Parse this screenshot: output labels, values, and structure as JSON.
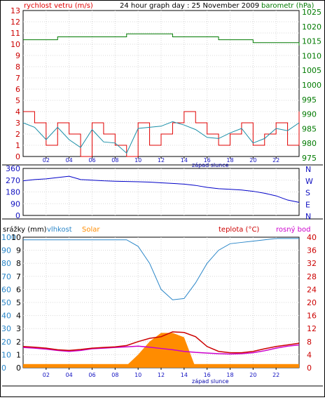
{
  "header": {
    "title": "24 hour graph day : 25 November 2009",
    "left_label": "rychlost vetru (m/s)",
    "right_label": "barometr (hPa)"
  },
  "lower": {
    "label_precip": "srážky (mm)",
    "label_humidity": "vlhkost",
    "label_solar": "Solar",
    "label_temp": "teplota (°C)",
    "label_dew": "rosný bod"
  },
  "footer_label": "západ slunce",
  "colors": {
    "wind": "#e00000",
    "gust": "#1a8fa8",
    "pressure": "#007a00",
    "direction": "#0000c8",
    "humidity": "#2a86c8",
    "temperature": "#cc0000",
    "dewpoint": "#cc00cc",
    "solar": "#ff8c00",
    "axis_blue": "#2a86c8",
    "axis_red": "#cc0000",
    "axis_green": "#007a00"
  },
  "chart_data": [
    {
      "type": "line",
      "title": "24 hour graph day : 25 November 2009",
      "x_ticks": [
        "02",
        "04",
        "06",
        "08",
        "10",
        "12",
        "14",
        "16",
        "18",
        "20",
        "22"
      ],
      "left_axis": {
        "label": "rychlost vetru (m/s)",
        "range": [
          0,
          13
        ],
        "ticks": [
          "0",
          "1",
          "2",
          "3",
          "4",
          "5",
          "6",
          "7",
          "8",
          "9",
          "10",
          "11",
          "12",
          "13"
        ]
      },
      "right_axis": {
        "label": "barometr (hPa)",
        "range": [
          975,
          1025
        ],
        "ticks": [
          "975",
          "980",
          "985",
          "990",
          "995",
          "1000",
          "1005",
          "1010",
          "1015",
          "1020",
          "1025"
        ]
      },
      "grid": true,
      "x": [
        0,
        1,
        2,
        3,
        4,
        5,
        6,
        7,
        8,
        9,
        10,
        11,
        12,
        13,
        14,
        15,
        16,
        17,
        18,
        19,
        20,
        21,
        22,
        23,
        24
      ],
      "series": [
        {
          "name": "wind",
          "axis": "left",
          "values": [
            4,
            3,
            1,
            3,
            2,
            0,
            3,
            2,
            1,
            0,
            3,
            1,
            2,
            3,
            4,
            3,
            2,
            1,
            2,
            3,
            1,
            2,
            3,
            1,
            4
          ]
        },
        {
          "name": "gust",
          "axis": "left",
          "values": [
            3,
            2.6,
            1.5,
            2.6,
            1.5,
            0.8,
            2.4,
            1.3,
            1.2,
            0.3,
            2.5,
            2.6,
            2.7,
            3.1,
            2.8,
            2.4,
            1.7,
            1.6,
            2.1,
            2.5,
            1.2,
            1.6,
            2.5,
            2.3,
            3
          ]
        },
        {
          "name": "pressure",
          "axis": "right",
          "values": [
            1015,
            1015,
            1015,
            1016,
            1016,
            1016,
            1016,
            1016,
            1016,
            1017,
            1017,
            1017,
            1017,
            1016,
            1016,
            1016,
            1016,
            1015,
            1015,
            1015,
            1014,
            1014,
            1014,
            1014,
            1013
          ]
        }
      ]
    },
    {
      "type": "line",
      "x_ticks": [
        "02",
        "04",
        "06",
        "08",
        "10",
        "12",
        "14",
        "16",
        "18",
        "20",
        "22"
      ],
      "left_axis": {
        "range": [
          0,
          360
        ],
        "ticks": [
          "0",
          "90",
          "180",
          "270",
          "360"
        ]
      },
      "right_axis_labels": [
        "N",
        "W",
        "S",
        "E",
        "N"
      ],
      "grid": true,
      "x": [
        0,
        1,
        2,
        3,
        4,
        5,
        6,
        7,
        8,
        9,
        10,
        11,
        12,
        13,
        14,
        15,
        16,
        17,
        18,
        19,
        20,
        21,
        22,
        23,
        24
      ],
      "series": [
        {
          "name": "wind direction",
          "values": [
            265,
            275,
            280,
            290,
            300,
            275,
            270,
            265,
            262,
            260,
            258,
            255,
            250,
            245,
            240,
            230,
            215,
            205,
            200,
            195,
            185,
            170,
            150,
            118,
            100
          ]
        }
      ]
    },
    {
      "type": "line",
      "x_ticks": [
        "02",
        "04",
        "06",
        "08",
        "10",
        "12",
        "14",
        "16",
        "18",
        "20",
        "22"
      ],
      "left_axis": {
        "label": "srážky (mm)",
        "range": [
          0,
          10
        ],
        "ticks": [
          "0",
          "1",
          "2",
          "3",
          "4",
          "5",
          "6",
          "7",
          "8",
          "9",
          "10"
        ]
      },
      "humidity_axis": {
        "label": "vlhkost",
        "range": [
          0,
          100
        ],
        "ticks": [
          "0",
          "10",
          "20",
          "30",
          "40",
          "50",
          "60",
          "70",
          "80",
          "90",
          "100"
        ]
      },
      "solar_axis": {
        "range": [
          0,
          30
        ],
        "ticks": [
          "0",
          "2",
          "4",
          "6",
          "8",
          "10",
          "12",
          "14",
          "16",
          "18",
          "20",
          "22",
          "24",
          "26",
          "28",
          "30"
        ]
      },
      "right_axis": {
        "label": "teplota (°C)",
        "range": [
          0,
          40
        ],
        "ticks": [
          "0",
          "4",
          "8",
          "12",
          "16",
          "20",
          "24",
          "28",
          "32",
          "36",
          "40"
        ]
      },
      "grid": true,
      "x": [
        0,
        1,
        2,
        3,
        4,
        5,
        6,
        7,
        8,
        9,
        10,
        11,
        12,
        13,
        14,
        15,
        16,
        17,
        18,
        19,
        20,
        21,
        22,
        23,
        24
      ],
      "series": [
        {
          "name": "vlhkost",
          "values": [
            98,
            98,
            98,
            98,
            98,
            98,
            98,
            98,
            98,
            98,
            93,
            80,
            60,
            52,
            53,
            65,
            80,
            90,
            95,
            96,
            97,
            98,
            99,
            99,
            99
          ]
        },
        {
          "name": "teplota",
          "values": [
            6.5,
            6.3,
            6.0,
            5.5,
            5.3,
            5.6,
            6.0,
            6.2,
            6.4,
            6.8,
            8.0,
            9.0,
            9.5,
            11.0,
            10.8,
            9.5,
            6.5,
            5.0,
            4.6,
            4.6,
            5.0,
            5.8,
            6.5,
            7.0,
            7.5
          ]
        },
        {
          "name": "rosný bod",
          "values": [
            6.2,
            6.0,
            5.7,
            5.3,
            5.0,
            5.3,
            5.8,
            6.0,
            6.2,
            6.4,
            6.6,
            6.3,
            5.9,
            5.5,
            5.0,
            4.7,
            4.5,
            4.3,
            4.2,
            4.3,
            4.6,
            5.2,
            6.0,
            6.6,
            7.0
          ]
        },
        {
          "name": "Solar",
          "values": [
            0,
            0,
            0,
            0,
            0,
            0,
            0,
            0,
            0,
            0.5,
            3,
            6,
            8,
            8,
            7,
            0,
            0,
            0,
            0,
            0,
            0,
            0,
            0,
            0,
            0
          ]
        },
        {
          "name": "srážky",
          "values": [
            0.8,
            0.8,
            0.8,
            0.8,
            0.8,
            0.8,
            0.8,
            0.8,
            0.8,
            0.8,
            0.8,
            0.8,
            0.8,
            0.8,
            0.8,
            0.8,
            0.8,
            0.8,
            0.8,
            0.8,
            0.8,
            0.8,
            0.8,
            0.8,
            0.8
          ]
        }
      ]
    }
  ]
}
